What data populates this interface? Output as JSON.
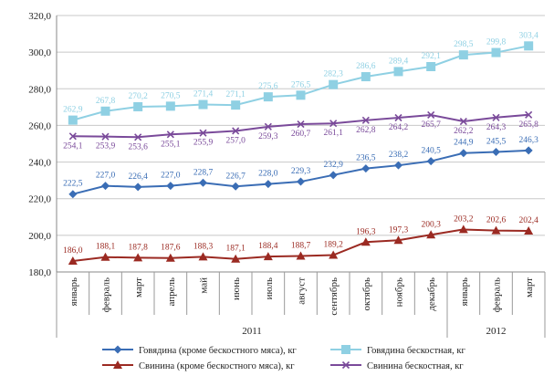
{
  "chart_data": {
    "type": "line",
    "categories": [
      "январь",
      "февраль",
      "март",
      "апрель",
      "май",
      "июнь",
      "июль",
      "август",
      "сентябрь",
      "октябрь",
      "ноябрь",
      "декабрь",
      "январь",
      "февраль",
      "март"
    ],
    "year_groups": [
      {
        "label": "2011",
        "count": 12
      },
      {
        "label": "2012",
        "count": 3
      }
    ],
    "ylim": [
      180,
      320
    ],
    "yticks": [
      "180,0",
      "200,0",
      "220,0",
      "240,0",
      "260,0",
      "280,0",
      "300,0",
      "320,0"
    ],
    "grid": true,
    "legend_position": "bottom",
    "series": [
      {
        "name": "Говядина (кроме бескостного мяса), кг",
        "color": "#3a6db5",
        "marker": "diamond",
        "values": [
          222.5,
          227.0,
          226.4,
          227.0,
          228.7,
          226.7,
          228.0,
          229.3,
          232.9,
          236.5,
          238.2,
          240.5,
          244.9,
          245.5,
          246.3
        ],
        "labels": [
          "222,5",
          "227,0",
          "226,4",
          "227,0",
          "228,7",
          "226,7",
          "228,0",
          "229,3",
          "232,9",
          "236,5",
          "238,2",
          "240,5",
          "244,9",
          "245,5",
          "246,3"
        ]
      },
      {
        "name": "Говядина бескостная, кг",
        "color": "#8fd0e3",
        "marker": "square",
        "values": [
          262.9,
          267.8,
          270.2,
          270.5,
          271.4,
          271.1,
          275.6,
          276.5,
          282.3,
          286.6,
          289.4,
          292.1,
          298.5,
          299.8,
          303.4
        ],
        "labels": [
          "262,9",
          "267,8",
          "270,2",
          "270,5",
          "271,4",
          "271,1",
          "275,6",
          "276,5",
          "282,3",
          "286,6",
          "289,4",
          "292,1",
          "298,5",
          "299,8",
          "303,4"
        ]
      },
      {
        "name": "Свинина (кроме бескостного мяса), кг",
        "color": "#9b2a22",
        "marker": "triangle",
        "values": [
          186.0,
          188.1,
          187.8,
          187.6,
          188.3,
          187.1,
          188.4,
          188.7,
          189.2,
          196.3,
          197.3,
          200.3,
          203.2,
          202.6,
          202.4
        ],
        "labels": [
          "186,0",
          "188,1",
          "187,8",
          "187,6",
          "188,3",
          "187,1",
          "188,4",
          "188,7",
          "189,2",
          "196,3",
          "197,3",
          "200,3",
          "203,2",
          "202,6",
          "202,4"
        ]
      },
      {
        "name": "Свинина бескостная, кг",
        "color": "#7a4a9a",
        "marker": "x",
        "values": [
          254.1,
          253.9,
          253.6,
          255.1,
          255.9,
          257.0,
          259.3,
          260.7,
          261.1,
          262.8,
          264.2,
          265.7,
          262.2,
          264.3,
          265.8
        ],
        "labels": [
          "254,1",
          "253,9",
          "253,6",
          "255,1",
          "255,9",
          "257,0",
          "259,3",
          "260,7",
          "261,1",
          "262,8",
          "264,2",
          "265,7",
          "262,2",
          "264,3",
          "265,8"
        ]
      }
    ]
  }
}
